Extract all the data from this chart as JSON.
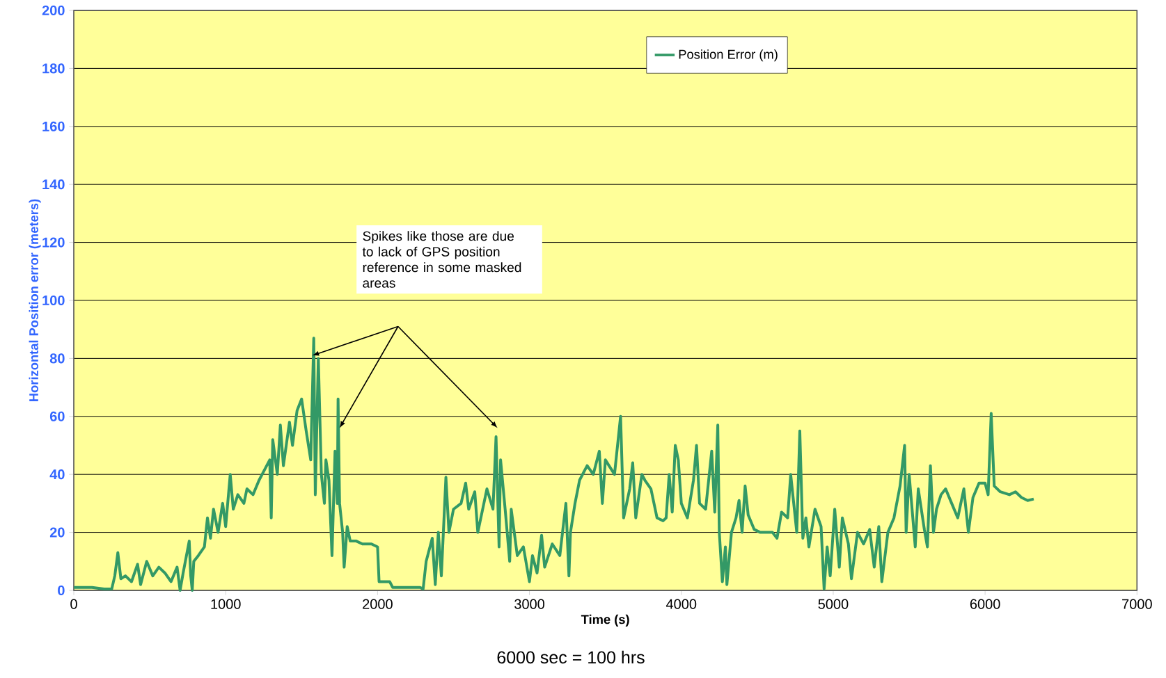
{
  "chart_data": {
    "type": "line",
    "xlabel": "Time (s)",
    "ylabel": "Horizontal Position error (meters)",
    "annotations": [
      "Spikes like those are due to lack of GPS position reference in some masked areas",
      "6000 sec = 100 hrs"
    ],
    "xlim": [
      0,
      7000
    ],
    "ylim": [
      0,
      200
    ],
    "xticks": [
      0,
      1000,
      2000,
      3000,
      4000,
      5000,
      6000,
      7000
    ],
    "yticks": [
      0,
      20,
      40,
      60,
      80,
      100,
      120,
      140,
      160,
      180,
      200
    ],
    "grid": "y",
    "legend": "top",
    "marker": "none",
    "line_style": "solid",
    "series": [
      {
        "name": "Position Error (m)",
        "color": "#339966",
        "x": [
          0,
          120,
          200,
          250,
          270,
          290,
          310,
          340,
          380,
          420,
          440,
          480,
          520,
          560,
          600,
          640,
          680,
          700,
          720,
          760,
          770,
          780,
          790,
          820,
          860,
          880,
          900,
          920,
          950,
          980,
          1000,
          1030,
          1050,
          1080,
          1120,
          1140,
          1180,
          1220,
          1260,
          1290,
          1300,
          1310,
          1340,
          1360,
          1380,
          1420,
          1440,
          1470,
          1500,
          1530,
          1560,
          1580,
          1590,
          1610,
          1630,
          1650,
          1660,
          1680,
          1700,
          1720,
          1735,
          1740,
          1750,
          1770,
          1780,
          1800,
          1820,
          1860,
          1900,
          1960,
          2000,
          2010,
          2080,
          2100,
          2200,
          2280,
          2300,
          2320,
          2360,
          2380,
          2400,
          2420,
          2450,
          2470,
          2500,
          2550,
          2580,
          2600,
          2640,
          2660,
          2720,
          2760,
          2780,
          2800,
          2810,
          2840,
          2870,
          2880,
          2920,
          2960,
          3000,
          3020,
          3050,
          3080,
          3100,
          3150,
          3200,
          3240,
          3260,
          3270,
          3300,
          3330,
          3380,
          3420,
          3460,
          3480,
          3500,
          3560,
          3600,
          3620,
          3660,
          3680,
          3700,
          3740,
          3760,
          3800,
          3840,
          3880,
          3900,
          3920,
          3940,
          3960,
          3980,
          4000,
          4040,
          4080,
          4100,
          4120,
          4160,
          4200,
          4220,
          4240,
          4250,
          4270,
          4290,
          4300,
          4330,
          4360,
          4380,
          4400,
          4420,
          4440,
          4480,
          4520,
          4560,
          4600,
          4630,
          4660,
          4700,
          4720,
          4740,
          4760,
          4780,
          4800,
          4820,
          4840,
          4880,
          4920,
          4940,
          4960,
          4980,
          5010,
          5040,
          5060,
          5100,
          5120,
          5160,
          5200,
          5240,
          5270,
          5300,
          5320,
          5360,
          5400,
          5440,
          5470,
          5480,
          5500,
          5540,
          5560,
          5600,
          5620,
          5640,
          5660,
          5680,
          5710,
          5740,
          5780,
          5820,
          5860,
          5890,
          5920,
          5960,
          6000,
          6020,
          6040,
          6060,
          6100,
          6160,
          6200,
          6240,
          6280,
          6320
        ],
        "values": [
          1,
          1,
          0.5,
          0.5,
          5,
          13,
          4,
          5,
          3,
          9,
          2,
          10,
          5,
          8,
          6,
          3,
          8,
          0,
          6,
          17,
          5,
          0,
          10,
          12,
          15,
          25,
          18,
          28,
          20,
          30,
          22,
          40,
          28,
          33,
          30,
          35,
          33,
          38,
          42,
          45,
          25,
          52,
          40,
          57,
          43,
          58,
          50,
          62,
          66,
          55,
          45,
          87,
          33,
          80,
          40,
          30,
          45,
          38,
          12,
          48,
          30,
          66,
          30,
          20,
          8,
          22,
          17,
          17,
          16,
          16,
          15,
          3,
          3,
          1,
          1,
          1,
          0.5,
          10,
          18,
          2,
          20,
          5,
          39,
          20,
          28,
          30,
          37,
          28,
          34,
          20,
          35,
          28,
          53,
          15,
          45,
          28,
          10,
          28,
          12,
          15,
          3,
          12,
          6,
          19,
          8,
          16,
          12,
          30,
          5,
          20,
          30,
          38,
          43,
          40,
          48,
          30,
          45,
          40,
          60,
          25,
          35,
          44,
          25,
          40,
          38,
          35,
          25,
          24,
          25,
          40,
          27,
          50,
          45,
          30,
          25,
          38,
          50,
          30,
          28,
          48,
          27,
          57,
          20,
          3,
          15,
          2,
          20,
          25,
          31,
          20,
          36,
          26,
          21,
          20,
          20,
          20,
          18,
          27,
          25,
          40,
          30,
          20,
          55,
          18,
          25,
          15,
          28,
          22,
          0.5,
          15,
          5,
          28,
          8,
          25,
          16,
          4,
          20,
          16,
          21,
          8,
          22,
          3,
          20,
          25,
          36,
          50,
          20,
          40,
          15,
          35,
          21,
          15,
          43,
          20,
          28,
          33,
          35,
          30,
          25,
          35,
          20,
          32,
          37,
          37,
          33,
          61,
          36,
          34,
          33,
          34,
          32,
          31,
          31.5
        ]
      }
    ]
  }
}
